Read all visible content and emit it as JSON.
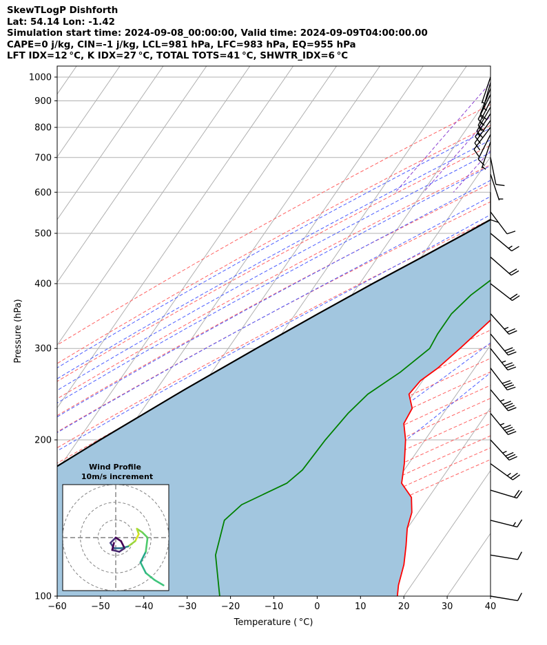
{
  "header": {
    "line1": "SkewTLogP Dishforth",
    "line2": "Lat: 54.14   Lon: -1.42",
    "line3": "Simulation start time: 2024-09-08_00:00:00, Valid time: 2024-09-09T04:00:00.00",
    "line4": "CAPE=0 j/kg, CIN=-1 j/kg, LCL=981 hPa, LFC=983 hPa, EQ=955 hPa",
    "line5": "LFT IDX=12 °C, K IDX=27 °C, TOTAL TOTS=41 °C, SHWTR_IDX=6 °C"
  },
  "chart_data": {
    "type": "line",
    "xlabel": "Temperature ( °C)",
    "ylabel": "Pressure (hPa)",
    "xlim": [
      -60,
      40
    ],
    "ylim": [
      1050,
      100
    ],
    "yscale": "log",
    "x_ticks": [
      "−60",
      "−50",
      "−40",
      "−30",
      "−20",
      "−10",
      "0",
      "10",
      "20",
      "30",
      "40"
    ],
    "y_ticks": [
      {
        "p": 1000,
        "label": "1000"
      },
      {
        "p": 900,
        "label": "900"
      },
      {
        "p": 800,
        "label": "800"
      },
      {
        "p": 700,
        "label": "700"
      },
      {
        "p": 600,
        "label": "600"
      },
      {
        "p": 500,
        "label": "500"
      },
      {
        "p": 400,
        "label": "400"
      },
      {
        "p": 300,
        "label": "300"
      },
      {
        "p": 200,
        "label": "200"
      },
      {
        "p": 100,
        "label": "100"
      }
    ],
    "grid": true,
    "colors": {
      "temperature": "#ff0000",
      "dewpoint": "#008000",
      "parcel": "#000000",
      "fill": "#a2c6df",
      "dry_adiabat": "#ff6060",
      "moist_adiabat": "#4a5cff",
      "mixing_ratio": "#8a3fd0",
      "isotherm": "#b0b0b0"
    },
    "temperature": [
      {
        "p": 1000,
        "t": 12.5
      },
      {
        "p": 960,
        "t": 13.4
      },
      {
        "p": 920,
        "t": 13.2
      },
      {
        "p": 880,
        "t": 13.8
      },
      {
        "p": 840,
        "t": 14.0
      },
      {
        "p": 800,
        "t": 13.3
      },
      {
        "p": 760,
        "t": 12.2
      },
      {
        "p": 720,
        "t": 10.8
      },
      {
        "p": 680,
        "t": 10.6
      },
      {
        "p": 640,
        "t": 10.4
      },
      {
        "p": 600,
        "t": 10.3
      },
      {
        "p": 570,
        "t": 10.0
      },
      {
        "p": 540,
        "t": 9.0
      },
      {
        "p": 500,
        "t": 7.0
      },
      {
        "p": 460,
        "t": 4.8
      },
      {
        "p": 420,
        "t": 2.2
      },
      {
        "p": 380,
        "t": -1.0
      },
      {
        "p": 340,
        "t": -4.0
      },
      {
        "p": 300,
        "t": -6.5
      },
      {
        "p": 275,
        "t": -8.5
      },
      {
        "p": 260,
        "t": -10.5
      },
      {
        "p": 245,
        "t": -11.0
      },
      {
        "p": 230,
        "t": -8.0
      },
      {
        "p": 215,
        "t": -7.5
      },
      {
        "p": 200,
        "t": -4.5
      },
      {
        "p": 180,
        "t": -1.0
      },
      {
        "p": 165,
        "t": 1.5
      },
      {
        "p": 155,
        "t": 6.0
      },
      {
        "p": 145,
        "t": 8.5
      },
      {
        "p": 135,
        "t": 10.0
      },
      {
        "p": 125,
        "t": 12.5
      },
      {
        "p": 115,
        "t": 15.0
      },
      {
        "p": 105,
        "t": 17.0
      },
      {
        "p": 100,
        "t": 18.5
      }
    ],
    "dewpoint": [
      {
        "p": 1000,
        "t": 11.5
      },
      {
        "p": 960,
        "t": 11.7
      },
      {
        "p": 920,
        "t": 12.5
      },
      {
        "p": 880,
        "t": 13.2
      },
      {
        "p": 840,
        "t": 12.0
      },
      {
        "p": 800,
        "t": 9.5
      },
      {
        "p": 760,
        "t": 9.5
      },
      {
        "p": 720,
        "t": 10.0
      },
      {
        "p": 680,
        "t": 8.5
      },
      {
        "p": 650,
        "t": 5.5
      },
      {
        "p": 620,
        "t": -3.0
      },
      {
        "p": 590,
        "t": -6.0
      },
      {
        "p": 550,
        "t": -1.0
      },
      {
        "p": 520,
        "t": 1.0
      },
      {
        "p": 480,
        "t": -1.0
      },
      {
        "p": 440,
        "t": -6.0
      },
      {
        "p": 410,
        "t": -10.0
      },
      {
        "p": 380,
        "t": -12.5
      },
      {
        "p": 350,
        "t": -14.0
      },
      {
        "p": 320,
        "t": -14.0
      },
      {
        "p": 300,
        "t": -13.5
      },
      {
        "p": 270,
        "t": -16.5
      },
      {
        "p": 245,
        "t": -20.5
      },
      {
        "p": 225,
        "t": -22.0
      },
      {
        "p": 200,
        "t": -23.0
      },
      {
        "p": 175,
        "t": -23.5
      },
      {
        "p": 165,
        "t": -25.0
      },
      {
        "p": 150,
        "t": -32.0
      },
      {
        "p": 140,
        "t": -33.5
      },
      {
        "p": 120,
        "t": -30.0
      },
      {
        "p": 100,
        "t": -22.5
      }
    ],
    "parcel": [
      {
        "p": 1000,
        "t": 12.5
      },
      {
        "p": 950,
        "t": 10.5
      },
      {
        "p": 900,
        "t": 8.0
      },
      {
        "p": 850,
        "t": 5.2
      },
      {
        "p": 800,
        "t": 2.3
      },
      {
        "p": 750,
        "t": -0.8
      },
      {
        "p": 700,
        "t": -4.5
      },
      {
        "p": 650,
        "t": -8.5
      },
      {
        "p": 600,
        "t": -13.0
      },
      {
        "p": 550,
        "t": -18.0
      },
      {
        "p": 500,
        "t": -23.5
      },
      {
        "p": 450,
        "t": -29.8
      },
      {
        "p": 400,
        "t": -37.0
      },
      {
        "p": 350,
        "t": -44.8
      },
      {
        "p": 300,
        "t": -53.5
      },
      {
        "p": 250,
        "t": -63.5
      },
      {
        "p": 200,
        "t": -75.0
      },
      {
        "p": 150,
        "t": -89.0
      },
      {
        "p": 120,
        "t": -99.5
      },
      {
        "p": 100,
        "t": -108.0
      }
    ],
    "wind_barbs": [
      {
        "p": 1000,
        "u": 1,
        "v": 3
      },
      {
        "p": 975,
        "u": 1,
        "v": 3.5
      },
      {
        "p": 950,
        "u": 2,
        "v": 5
      },
      {
        "p": 925,
        "u": 3,
        "v": 6
      },
      {
        "p": 900,
        "u": 3.5,
        "v": 7
      },
      {
        "p": 875,
        "u": 4,
        "v": 7
      },
      {
        "p": 850,
        "u": 4,
        "v": 6
      },
      {
        "p": 825,
        "u": 3.5,
        "v": 5
      },
      {
        "p": 800,
        "u": 3,
        "v": 4
      },
      {
        "p": 775,
        "u": 2,
        "v": 4
      },
      {
        "p": 750,
        "u": 1,
        "v": 3
      },
      {
        "p": 700,
        "u": -1,
        "v": 5
      },
      {
        "p": 650,
        "u": -1,
        "v": 3
      },
      {
        "p": 600,
        "u": 0,
        "v": 4
      },
      {
        "p": 550,
        "u": -3,
        "v": 4
      },
      {
        "p": 500,
        "u": -6,
        "v": 5
      },
      {
        "p": 450,
        "u": -8,
        "v": 7
      },
      {
        "p": 400,
        "u": -9,
        "v": 7
      },
      {
        "p": 350,
        "u": -9,
        "v": 10
      },
      {
        "p": 320,
        "u": -10,
        "v": 12
      },
      {
        "p": 300,
        "u": -12,
        "v": 15
      },
      {
        "p": 275,
        "u": -13,
        "v": 17
      },
      {
        "p": 250,
        "u": -15,
        "v": 18
      },
      {
        "p": 225,
        "u": -14,
        "v": 17
      },
      {
        "p": 200,
        "u": -12,
        "v": 13
      },
      {
        "p": 180,
        "u": -11,
        "v": 8
      },
      {
        "p": 160,
        "u": -10,
        "v": 3
      },
      {
        "p": 140,
        "u": -8,
        "v": 2
      },
      {
        "p": 120,
        "u": -6,
        "v": 1
      },
      {
        "p": 100,
        "u": -6,
        "v": 1
      }
    ],
    "hodograph": {
      "title_line1": "Wind Profile",
      "title_line2": "10m/s increment",
      "range": 30,
      "rings": [
        10,
        20,
        30
      ],
      "points": [
        {
          "u": 27,
          "v": -27
        },
        {
          "u": 22,
          "v": -24
        },
        {
          "u": 17,
          "v": -20
        },
        {
          "u": 14,
          "v": -14
        },
        {
          "u": 17,
          "v": -8
        },
        {
          "u": 18,
          "v": 0
        },
        {
          "u": 15,
          "v": 3
        },
        {
          "u": 12,
          "v": 5
        },
        {
          "u": 13,
          "v": 2
        },
        {
          "u": 11,
          "v": -2
        },
        {
          "u": 7,
          "v": -5
        },
        {
          "u": 3,
          "v": -6
        },
        {
          "u": -1,
          "v": -6
        },
        {
          "u": -3,
          "v": -3
        },
        {
          "u": 0,
          "v": 0
        },
        {
          "u": 3,
          "v": -2
        },
        {
          "u": 5,
          "v": -6
        },
        {
          "u": 2,
          "v": -8
        },
        {
          "u": -2,
          "v": -7
        },
        {
          "u": -1,
          "v": -3
        }
      ]
    }
  }
}
